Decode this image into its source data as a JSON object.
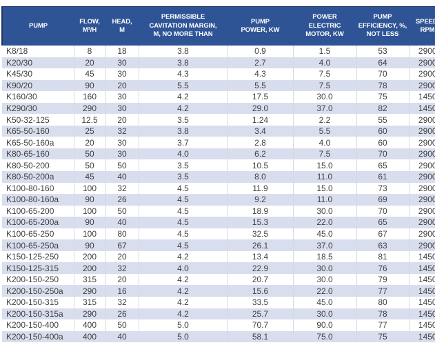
{
  "colors": {
    "header_bg": "#2F5496",
    "header_text": "#FFFFFF",
    "header_edge": "#1F3864",
    "row_alt_bg": "#D8DEED",
    "grid_line": "#D5D9E2",
    "cell_text": "#3F3F3F"
  },
  "table": {
    "columns": [
      {
        "key": "pump",
        "label": "PUMP"
      },
      {
        "key": "flow",
        "label": "FLOW,\nM³/H"
      },
      {
        "key": "head",
        "label": "HEAD,\nM"
      },
      {
        "key": "cavitation-margin",
        "label": "PERMISSIBLE\nCAVITATION MARGIN,\nM, NO MORE THAN"
      },
      {
        "key": "pump-power",
        "label": "PUMP\nPOWER, KW"
      },
      {
        "key": "motor-power",
        "label": "POWER\nELECTRIC\nMOTOR, KW"
      },
      {
        "key": "efficiency",
        "label": "PUMP\nEFFICIENCY, %,\nNOT LESS"
      },
      {
        "key": "speed",
        "label": "SPEED,\nRPM"
      }
    ],
    "rows": [
      [
        "K8/18",
        "8",
        "18",
        "3.8",
        "0.9",
        "1.5",
        "53",
        "2900"
      ],
      [
        "K20/30",
        "20",
        "30",
        "3.8",
        "2.7",
        "4.0",
        "64",
        "2900"
      ],
      [
        "K45/30",
        "45",
        "30",
        "4.3",
        "4.3",
        "7.5",
        "70",
        "2900"
      ],
      [
        "K90/20",
        "90",
        "20",
        "5.5",
        "5.5",
        "7.5",
        "78",
        "2900"
      ],
      [
        "K160/30",
        "160",
        "30",
        "4.2",
        "17.5",
        "30.0",
        "75",
        "1450"
      ],
      [
        "K290/30",
        "290",
        "30",
        "4.2",
        "29.0",
        "37.0",
        "82",
        "1450"
      ],
      [
        "K50-32-125",
        "12.5",
        "20",
        "3.5",
        "1.24",
        "2.2",
        "55",
        "2900"
      ],
      [
        "K65-50-160",
        "25",
        "32",
        "3.8",
        "3.4",
        "5.5",
        "60",
        "2900"
      ],
      [
        "K65-50-160a",
        "20",
        "30",
        "3.7",
        "2.8",
        "4.0",
        "60",
        "2900"
      ],
      [
        "K80-65-160",
        "50",
        "30",
        "4.0",
        "6.2",
        "7.5",
        "70",
        "2900"
      ],
      [
        "K80-50-200",
        "50",
        "50",
        "3.5",
        "10.5",
        "15.0",
        "65",
        "2900"
      ],
      [
        "K80-50-200a",
        "45",
        "40",
        "3.5",
        "8.0",
        "11.0",
        "61",
        "2900"
      ],
      [
        "K100-80-160",
        "100",
        "32",
        "4.5",
        "11.9",
        "15.0",
        "73",
        "2900"
      ],
      [
        "K100-80-160a",
        "90",
        "26",
        "4.5",
        "9.2",
        "11.0",
        "69",
        "2900"
      ],
      [
        "K100-65-200",
        "100",
        "50",
        "4.5",
        "18.9",
        "30.0",
        "70",
        "2900"
      ],
      [
        "K100-65-200a",
        "90",
        "40",
        "4.5",
        "15.3",
        "22.0",
        "65",
        "2900"
      ],
      [
        "K100-65-250",
        "100",
        "80",
        "4.5",
        "32.5",
        "45.0",
        "67",
        "2900"
      ],
      [
        "K100-65-250a",
        "90",
        "67",
        "4.5",
        "26.1",
        "37.0",
        "63",
        "2900"
      ],
      [
        "K150-125-250",
        "200",
        "20",
        "4.2",
        "13.4",
        "18.5",
        "81",
        "1450"
      ],
      [
        "K150-125-315",
        "200",
        "32",
        "4.0",
        "22.9",
        "30.0",
        "76",
        "1450"
      ],
      [
        "K200-150-250",
        "315",
        "20",
        "4.2",
        "20.7",
        "30.0",
        "79",
        "1450"
      ],
      [
        "K200-150-250a",
        "290",
        "16",
        "4.2",
        "15.6",
        "22.0",
        "77",
        "1450"
      ],
      [
        "K200-150-315",
        "315",
        "32",
        "4.2",
        "33.5",
        "45.0",
        "80",
        "1450"
      ],
      [
        "K200-150-315a",
        "290",
        "26",
        "4.2",
        "25.7",
        "30.0",
        "78",
        "1450"
      ],
      [
        "K200-150-400",
        "400",
        "50",
        "5.0",
        "70.7",
        "90.0",
        "77",
        "1450"
      ],
      [
        "K200-150-400a",
        "400",
        "40",
        "5.0",
        "58.1",
        "75.0",
        "75",
        "1450"
      ]
    ]
  }
}
